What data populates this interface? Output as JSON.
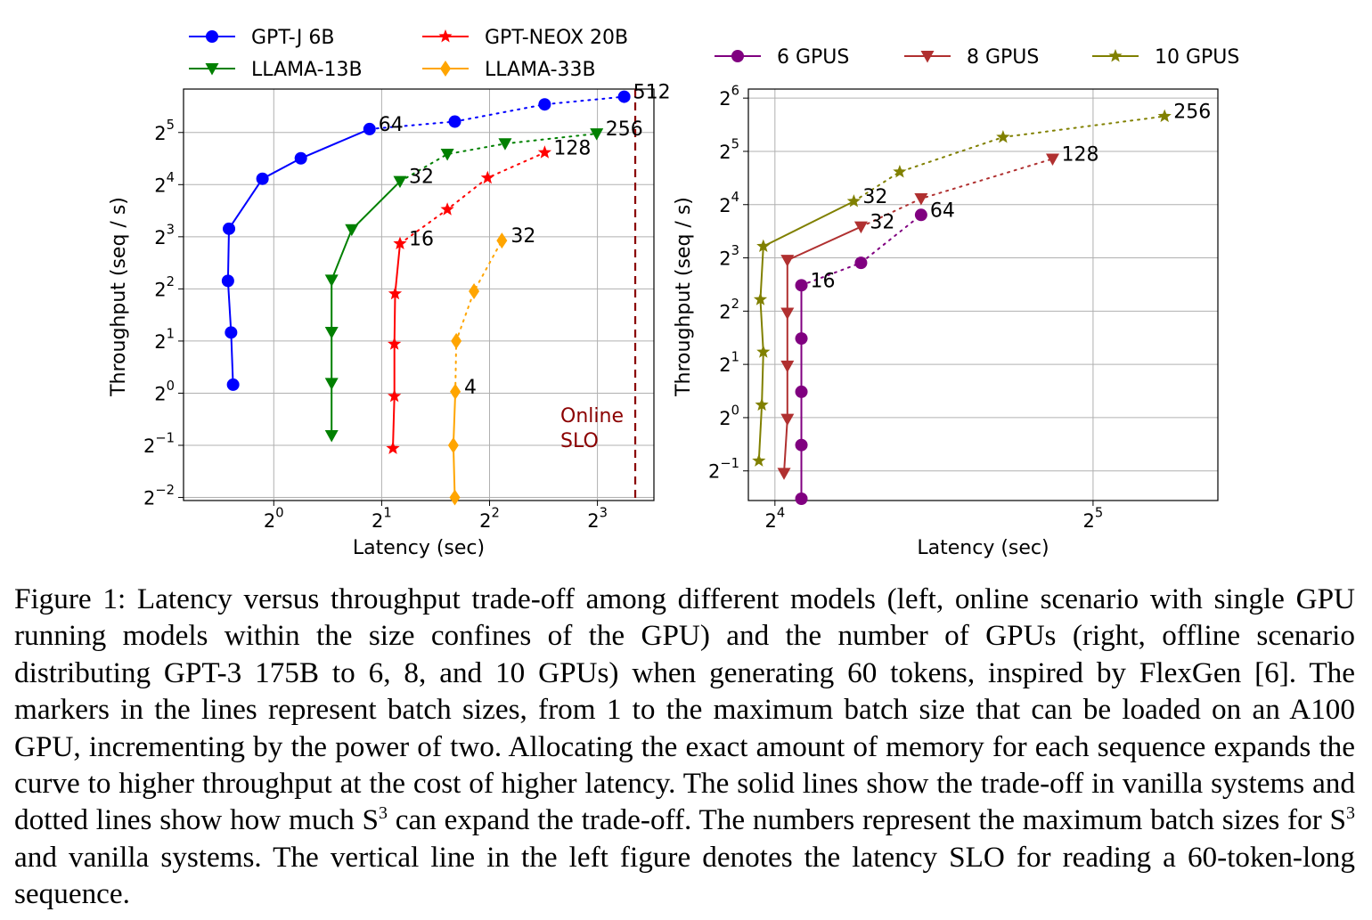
{
  "chart_data": [
    {
      "type": "line",
      "xlabel": "Latency (sec)",
      "ylabel": "Throughput (seq / s)",
      "x_scale": "log2",
      "y_scale": "log2",
      "xlim": [
        0.56,
        11.5
      ],
      "ylim": [
        0.24,
        57
      ],
      "xticks": [
        {
          "value": 1,
          "label": "2^0"
        },
        {
          "value": 2,
          "label": "2^1"
        },
        {
          "value": 4,
          "label": "2^2"
        },
        {
          "value": 8,
          "label": "2^3"
        }
      ],
      "yticks": [
        {
          "value": 0.25,
          "label": "2^−2"
        },
        {
          "value": 0.5,
          "label": "2^−1"
        },
        {
          "value": 1,
          "label": "2^0"
        },
        {
          "value": 2,
          "label": "2^1"
        },
        {
          "value": 4,
          "label": "2^2"
        },
        {
          "value": 8,
          "label": "2^3"
        },
        {
          "value": 16,
          "label": "2^4"
        },
        {
          "value": 32,
          "label": "2^5"
        }
      ],
      "grid": true,
      "legend_position": "top",
      "vline": {
        "x": 10.2,
        "color": "#8b0000",
        "label_lines": [
          "Online",
          "SLO"
        ]
      },
      "series": [
        {
          "name": "GPT-J 6B",
          "color": "#0000ff",
          "marker": "circle",
          "solid": [
            [
              0.77,
              1.12
            ],
            [
              0.76,
              2.24
            ],
            [
              0.745,
              4.45
            ],
            [
              0.75,
              8.9
            ],
            [
              0.93,
              17.3
            ],
            [
              1.19,
              22.7
            ],
            [
              1.85,
              33.5
            ]
          ],
          "dotted": [
            [
              3.2,
              37
            ],
            [
              5.7,
              46.5
            ],
            [
              9.5,
              51.5
            ]
          ],
          "labels": [
            {
              "text": "64",
              "point": [
                1.85,
                33.5
              ]
            },
            {
              "text": "512",
              "point": [
                9.5,
                51.5
              ]
            }
          ]
        },
        {
          "name": "LLAMA-13B",
          "color": "#008000",
          "marker": "triangle-down",
          "solid": [
            [
              1.45,
              0.57
            ],
            [
              1.45,
              1.14
            ],
            [
              1.45,
              2.25
            ],
            [
              1.45,
              4.5
            ],
            [
              1.65,
              8.8
            ],
            [
              2.25,
              16.7
            ]
          ],
          "dotted": [
            [
              3.05,
              24
            ],
            [
              4.42,
              27.6
            ],
            [
              7.96,
              31.5
            ]
          ],
          "labels": [
            {
              "text": "32",
              "point": [
                2.25,
                16.7
              ]
            },
            {
              "text": "256",
              "point": [
                7.96,
                31.5
              ]
            }
          ]
        },
        {
          "name": "GPT-NEOX 20B",
          "color": "#ff0000",
          "marker": "star",
          "solid": [
            [
              2.15,
              0.48
            ],
            [
              2.17,
              0.96
            ],
            [
              2.17,
              1.92
            ],
            [
              2.18,
              3.75
            ],
            [
              2.25,
              7.3
            ]
          ],
          "dotted": [
            [
              3.05,
              11.5
            ],
            [
              3.95,
              17.5
            ],
            [
              5.7,
              24.5
            ]
          ],
          "labels": [
            {
              "text": "16",
              "point": [
                2.25,
                7.3
              ]
            },
            {
              "text": "128",
              "point": [
                5.7,
                24.5
              ]
            }
          ]
        },
        {
          "name": "LLAMA-33B",
          "color": "#ffa500",
          "marker": "diamond",
          "solid": [
            [
              3.2,
              0.25
            ],
            [
              3.17,
              0.5
            ],
            [
              3.21,
              1.02
            ]
          ],
          "dotted": [
            [
              3.23,
              2.0
            ],
            [
              3.62,
              3.88
            ],
            [
              4.33,
              7.6
            ]
          ],
          "labels": [
            {
              "text": "4",
              "point": [
                3.21,
                1.02
              ]
            },
            {
              "text": "32",
              "point": [
                4.33,
                7.6
              ]
            }
          ]
        }
      ]
    },
    {
      "type": "line",
      "xlabel": "Latency (sec)",
      "ylabel": "Throughput (seq / s)",
      "x_scale": "log2",
      "y_scale": "log2",
      "xlim": [
        15.1,
        42
      ],
      "ylim": [
        0.34,
        72
      ],
      "xticks": [
        {
          "value": 16,
          "label": "2^4"
        },
        {
          "value": 32,
          "label": "2^5"
        }
      ],
      "yticks": [
        {
          "value": 0.5,
          "label": "2^−1"
        },
        {
          "value": 1,
          "label": "2^0"
        },
        {
          "value": 2,
          "label": "2^1"
        },
        {
          "value": 4,
          "label": "2^2"
        },
        {
          "value": 8,
          "label": "2^3"
        },
        {
          "value": 16,
          "label": "2^4"
        },
        {
          "value": 32,
          "label": "2^5"
        },
        {
          "value": 64,
          "label": "2^6"
        }
      ],
      "grid": true,
      "legend_position": "top",
      "series": [
        {
          "name": "6 GPUS",
          "color": "#800080",
          "marker": "circle",
          "solid": [
            [
              16.95,
              0.348
            ],
            [
              16.95,
              0.7
            ],
            [
              16.95,
              1.4
            ],
            [
              16.95,
              2.8
            ],
            [
              16.95,
              5.6
            ]
          ],
          "dotted": [
            [
              19.3,
              7.5
            ],
            [
              22.0,
              14.0
            ]
          ],
          "labels": [
            {
              "text": "16",
              "point": [
                16.95,
                5.6
              ]
            },
            {
              "text": "64",
              "point": [
                22.0,
                14.0
              ]
            }
          ]
        },
        {
          "name": "8 GPUS",
          "color": "#b03030",
          "marker": "triangle-down",
          "solid": [
            [
              16.32,
              0.485
            ],
            [
              16.44,
              0.98
            ],
            [
              16.44,
              1.96
            ],
            [
              16.44,
              3.9
            ],
            [
              16.44,
              7.76
            ],
            [
              19.3,
              12.0
            ]
          ],
          "dotted": [
            [
              22.0,
              17.3
            ],
            [
              29.3,
              29.0
            ]
          ],
          "labels": [
            {
              "text": "32",
              "point": [
                19.3,
                12.0
              ]
            },
            {
              "text": "128",
              "point": [
                29.3,
                29.0
              ]
            }
          ]
        },
        {
          "name": "10 GPUS",
          "color": "#808000",
          "marker": "star",
          "solid": [
            [
              15.45,
              0.57
            ],
            [
              15.55,
              1.18
            ],
            [
              15.6,
              2.35
            ],
            [
              15.5,
              4.65
            ],
            [
              15.6,
              9.3
            ],
            [
              19.0,
              16.7
            ]
          ],
          "dotted": [
            [
              21.0,
              24.5
            ],
            [
              26.3,
              38.5
            ],
            [
              37.4,
              50.5
            ]
          ],
          "labels": [
            {
              "text": "32",
              "point": [
                19.0,
                16.7
              ]
            },
            {
              "text": "256",
              "point": [
                37.4,
                50.5
              ]
            }
          ]
        }
      ]
    }
  ],
  "caption": {
    "part1": "Figure 1: Latency versus throughput trade-off among different models (left, online scenario with single GPU running models within the size confines of the GPU) and the number of GPUs (right, offline scenario distributing GPT-3 175B to 6, 8, and 10 GPUs) when generating 60 tokens, inspired by FlexGen [6]. The markers in the lines represent batch sizes, from 1 to the maximum batch size that can be loaded on an A100 GPU, incrementing by the power of two. Allocating the exact amount of memory for each sequence expands the curve to higher throughput at the cost of higher latency. The solid lines show the trade-off in vanilla systems and dotted lines show how much S",
    "sup1": "3",
    "part2": " can expand the trade-off. The numbers represent the maximum batch sizes for S",
    "sup2": "3",
    "part3": " and vanilla systems. The vertical line in the left figure denotes the latency SLO for reading a 60-token-long sequence."
  }
}
